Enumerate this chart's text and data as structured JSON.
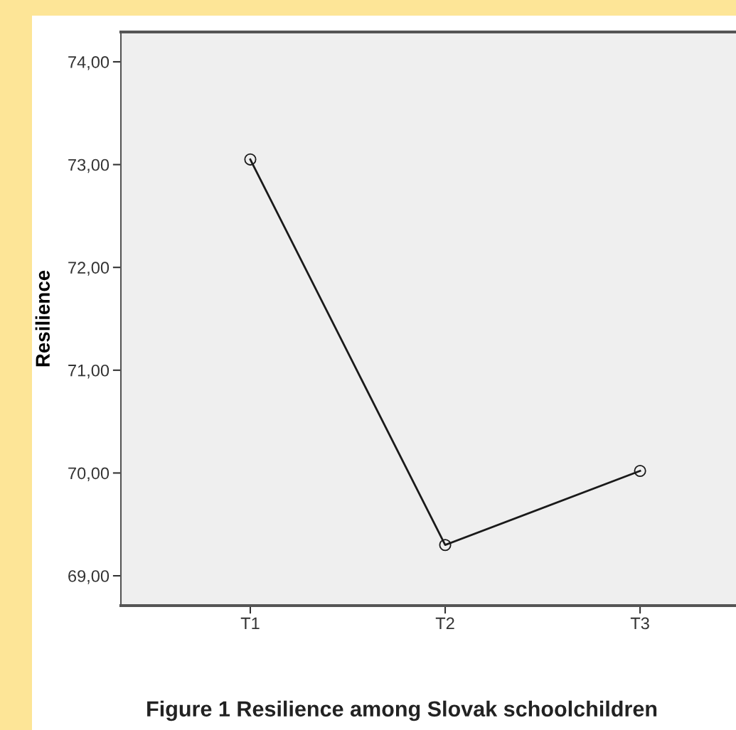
{
  "chart_data": {
    "type": "line",
    "title": "Figure 1 Resilience among Slovak schoolchildren",
    "ylabel": "Resilience",
    "categories": [
      "T1",
      "T2",
      "T3"
    ],
    "series": [
      {
        "color": "#1a1a1a",
        "values": [
          73.05,
          69.3,
          70.02
        ]
      }
    ],
    "ylim": [
      68.71,
      74.29
    ],
    "yticks": [
      {
        "value": 69,
        "label": "69,00"
      },
      {
        "value": 70,
        "label": "70,00"
      },
      {
        "value": 71,
        "label": "71,00"
      },
      {
        "value": 72,
        "label": "72,00"
      },
      {
        "value": 73,
        "label": "73,00"
      },
      {
        "value": 74,
        "label": "74,00"
      }
    ],
    "marker": "circle",
    "line_style": "solid",
    "grid": false,
    "legend": false
  }
}
